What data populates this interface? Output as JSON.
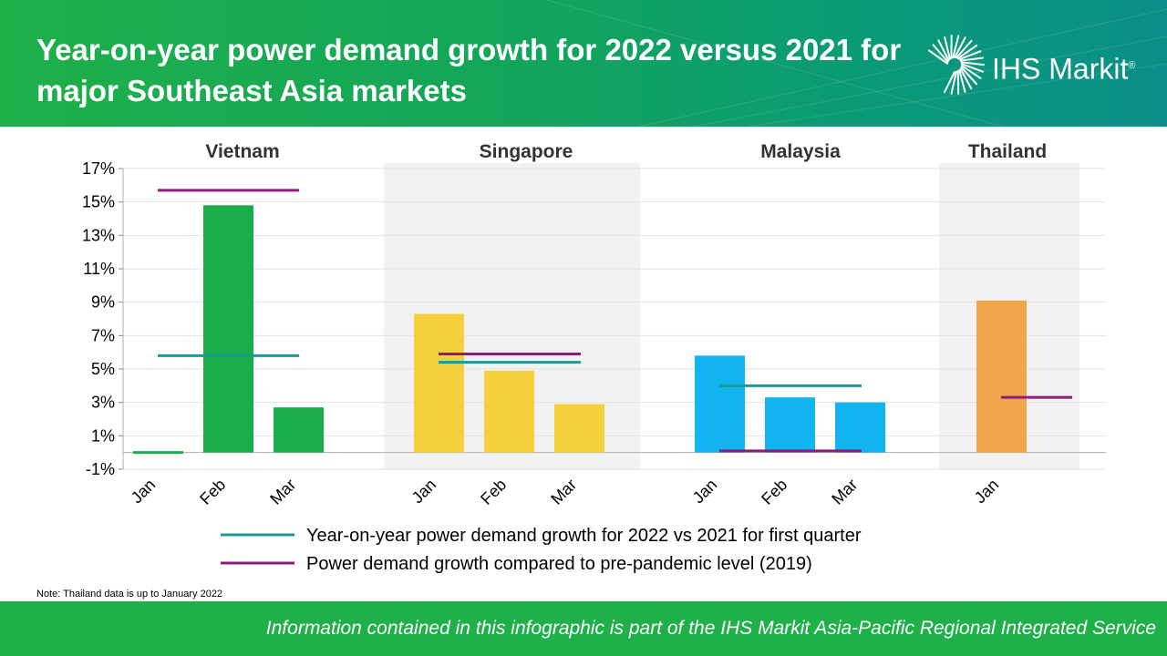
{
  "header": {
    "title": "Year-on-year power demand growth for 2022 versus 2021 for major Southeast Asia markets",
    "brand": "IHS Markit",
    "brand_mark": "®",
    "logo_icon": "starburst-logo-icon"
  },
  "chart_data": {
    "type": "bar",
    "ylim": [
      -1,
      17
    ],
    "y_ticks": [
      "17%",
      "15%",
      "13%",
      "11%",
      "9%",
      "7%",
      "5%",
      "3%",
      "1%",
      "-1%"
    ],
    "y_tick_values": [
      17,
      15,
      13,
      11,
      9,
      7,
      5,
      3,
      1,
      -1
    ],
    "grid": true,
    "legend_position": "bottom-center",
    "groups": [
      {
        "name": "Vietnam",
        "shaded": false,
        "color": "#1aad4b",
        "categories": [
          "Jan",
          "Feb",
          "Mar"
        ],
        "values": [
          0.0,
          14.8,
          2.7
        ],
        "yoy_q1": 5.8,
        "vs_2019": 15.7
      },
      {
        "name": "Singapore",
        "shaded": true,
        "color": "#f5d03a",
        "categories": [
          "Jan",
          "Feb",
          "Mar"
        ],
        "values": [
          8.3,
          4.9,
          2.9
        ],
        "yoy_q1": 5.4,
        "vs_2019": 5.9
      },
      {
        "name": "Malaysia",
        "shaded": false,
        "color": "#12b4ef",
        "categories": [
          "Jan",
          "Feb",
          "Mar"
        ],
        "values": [
          5.8,
          3.3,
          3.0
        ],
        "yoy_q1": 4.0,
        "vs_2019": 0.1
      },
      {
        "name": "Thailand",
        "shaded": true,
        "color": "#f0a64b",
        "categories": [
          "Jan"
        ],
        "values": [
          9.1
        ],
        "yoy_q1": null,
        "vs_2019": 3.3
      }
    ],
    "series": [
      {
        "name": "Year-on-year power demand growth for 2022 vs 2021 for first quarter",
        "color": "#1a9a90",
        "key": "yoy_q1"
      },
      {
        "name": "Power demand growth compared to pre-pandemic level (2019)",
        "color": "#8e1d7a",
        "key": "vs_2019"
      }
    ]
  },
  "note": "Note: Thailand data is up to January 2022",
  "footer": {
    "text": "Information contained in this infographic is part of the IHS Markit Asia-Pacific Regional Integrated Service"
  }
}
